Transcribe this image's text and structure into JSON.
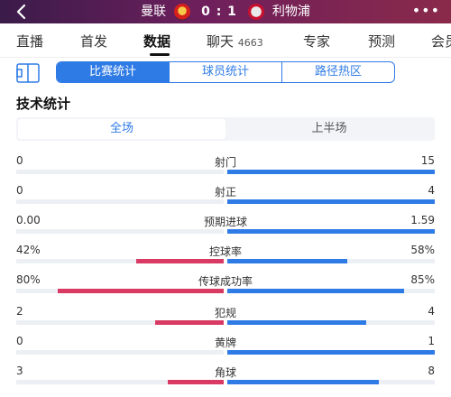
{
  "header": {
    "home_team": "曼联",
    "score": "0 : 1",
    "away_team": "利物浦",
    "home_crest_icon": "manchester-united-crest",
    "away_crest_icon": "liverpool-crest",
    "more_icon": "more-dots"
  },
  "tabs": [
    {
      "label": "直播"
    },
    {
      "label": "首发"
    },
    {
      "label": "数据"
    },
    {
      "label": "聊天",
      "count": "4663"
    },
    {
      "label": "专家"
    },
    {
      "label": "预测"
    },
    {
      "label": "会员"
    }
  ],
  "active_tab": "数据",
  "segments": [
    "比赛统计",
    "球员统计",
    "路径热区"
  ],
  "active_segment": "比赛统计",
  "section_title": "技术统计",
  "periods": [
    "全场",
    "上半场"
  ],
  "active_period": "全场",
  "colors": {
    "home": "#d83a63",
    "away": "#2f7be6",
    "accent": "#2f7be6"
  },
  "stats": [
    {
      "name": "射门",
      "home": "0",
      "away": "15",
      "home_frac": 0.0,
      "away_frac": 1.0
    },
    {
      "name": "射正",
      "home": "0",
      "away": "4",
      "home_frac": 0.0,
      "away_frac": 1.0
    },
    {
      "name": "预期进球",
      "home": "0.00",
      "away": "1.59",
      "home_frac": 0.0,
      "away_frac": 1.0
    },
    {
      "name": "控球率",
      "home": "42%",
      "away": "58%",
      "home_frac": 0.42,
      "away_frac": 0.58
    },
    {
      "name": "传球成功率",
      "home": "80%",
      "away": "85%",
      "home_frac": 0.8,
      "away_frac": 0.85
    },
    {
      "name": "犯规",
      "home": "2",
      "away": "4",
      "home_frac": 0.33,
      "away_frac": 0.67
    },
    {
      "name": "黄牌",
      "home": "0",
      "away": "1",
      "home_frac": 0.0,
      "away_frac": 1.0
    },
    {
      "name": "角球",
      "home": "3",
      "away": "8",
      "home_frac": 0.27,
      "away_frac": 0.73
    }
  ]
}
